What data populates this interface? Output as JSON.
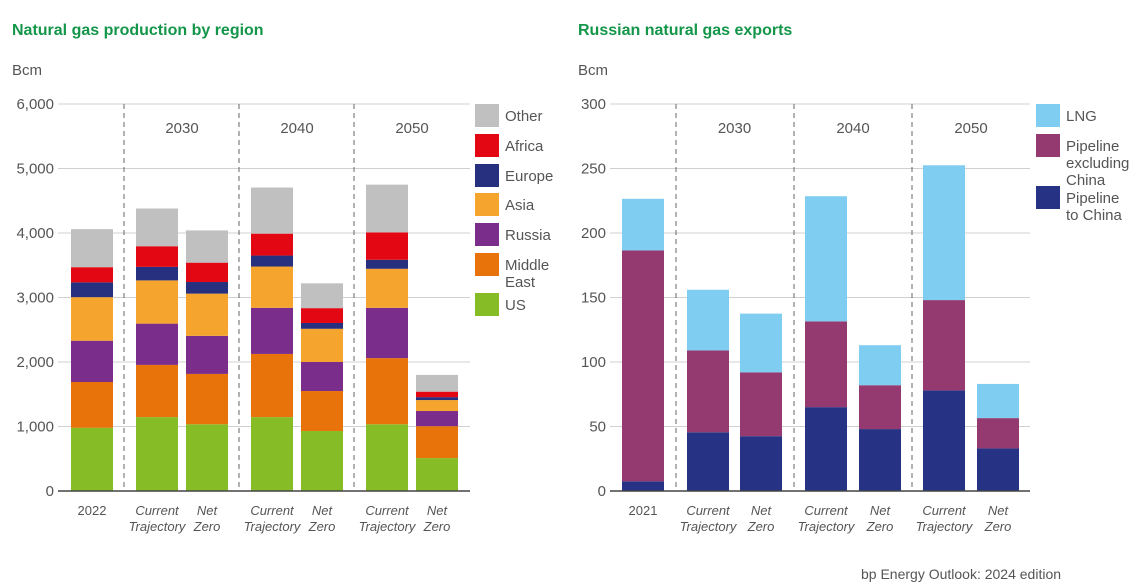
{
  "source": "bp Energy Outlook: 2024 edition",
  "chart_data": [
    {
      "type": "bar",
      "stacked": true,
      "title": "Natural gas production by region",
      "ylabel": "Bcm",
      "ylim": [
        0,
        6000
      ],
      "yticks": [
        "0",
        "1,000",
        "2,000",
        "3,000",
        "4,000",
        "5,000",
        "6,000"
      ],
      "grid": true,
      "legend": "right",
      "groups": [
        "2030",
        "2040",
        "2050"
      ],
      "categories": [
        {
          "line1": "2022",
          "line2": "",
          "group": ""
        },
        {
          "line1": "Current",
          "line2": "Trajectory",
          "group": "2030"
        },
        {
          "line1": "Net",
          "line2": "Zero",
          "group": "2030"
        },
        {
          "line1": "Current",
          "line2": "Trajectory",
          "group": "2040"
        },
        {
          "line1": "Net",
          "line2": "Zero",
          "group": "2040"
        },
        {
          "line1": "Current",
          "line2": "Trajectory",
          "group": "2050"
        },
        {
          "line1": "Net",
          "line2": "Zero",
          "group": "2050"
        }
      ],
      "series": [
        {
          "name": "US",
          "color": "#86bc25",
          "values": [
            980,
            1145,
            1035,
            1145,
            930,
            1035,
            510
          ]
        },
        {
          "name": "Middle East",
          "color": "#e8730a",
          "values": [
            710,
            810,
            780,
            980,
            620,
            1025,
            495
          ]
        },
        {
          "name": "Russia",
          "color": "#7b2d8b",
          "values": [
            640,
            640,
            590,
            715,
            450,
            780,
            235
          ]
        },
        {
          "name": "Asia",
          "color": "#f5a52e",
          "values": [
            675,
            670,
            655,
            640,
            515,
            605,
            170
          ]
        },
        {
          "name": "Europe",
          "color": "#27307f",
          "values": [
            230,
            210,
            180,
            170,
            90,
            140,
            45
          ]
        },
        {
          "name": "Africa",
          "color": "#e30613",
          "values": [
            235,
            320,
            300,
            340,
            230,
            425,
            85
          ]
        },
        {
          "name": "Other",
          "color": "#c0c0c0",
          "values": [
            590,
            585,
            500,
            715,
            385,
            740,
            260
          ]
        }
      ]
    },
    {
      "type": "bar",
      "stacked": true,
      "title": "Russian natural gas exports",
      "ylabel": "Bcm",
      "ylim": [
        0,
        300
      ],
      "yticks": [
        "0",
        "50",
        "100",
        "150",
        "200",
        "250",
        "300"
      ],
      "grid": true,
      "legend": "right",
      "groups": [
        "2030",
        "2040",
        "2050"
      ],
      "categories": [
        {
          "line1": "2021",
          "line2": "",
          "group": ""
        },
        {
          "line1": "Current",
          "line2": "Trajectory",
          "group": "2030"
        },
        {
          "line1": "Net",
          "line2": "Zero",
          "group": "2030"
        },
        {
          "line1": "Current",
          "line2": "Trajectory",
          "group": "2040"
        },
        {
          "line1": "Net",
          "line2": "Zero",
          "group": "2040"
        },
        {
          "line1": "Current",
          "line2": "Trajectory",
          "group": "2050"
        },
        {
          "line1": "Net",
          "line2": "Zero",
          "group": "2050"
        }
      ],
      "series": [
        {
          "name": "Pipeline to China",
          "color": "#263283",
          "values": [
            7.5,
            45.5,
            42.5,
            65,
            48,
            78,
            33
          ]
        },
        {
          "name": "Pipeline excluding China",
          "color": "#943a71",
          "values": [
            179,
            63.5,
            49.5,
            66.5,
            34,
            70,
            23.5
          ]
        },
        {
          "name": "LNG",
          "color": "#7fcdf0",
          "values": [
            40,
            47,
            45.5,
            97,
            31,
            104.5,
            26.5
          ]
        }
      ]
    }
  ]
}
